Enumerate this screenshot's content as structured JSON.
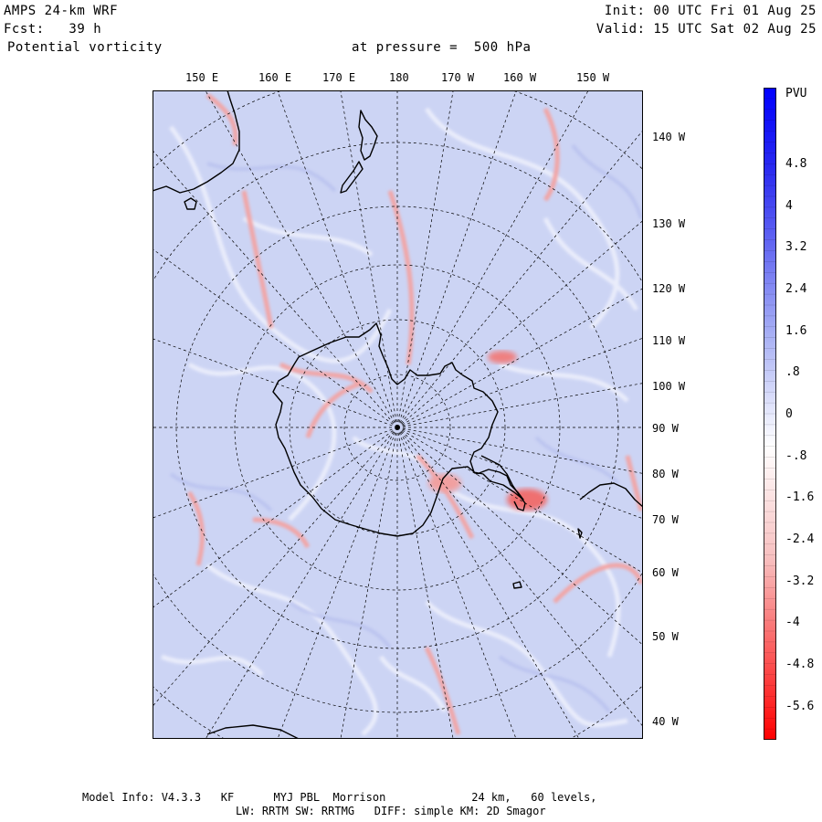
{
  "header": {
    "model_title": "AMPS 24-km WRF",
    "fcst": "Fcst:   39 h",
    "field": "Potential vorticity",
    "pressure": "at pressure =  500 hPa",
    "init": "Init: 00 UTC Fri 01 Aug 25",
    "valid": "Valid: 15 UTC Sat 02 Aug 25"
  },
  "map": {
    "top_longitudes": [
      "150 E",
      "160 E",
      "170 E",
      "180",
      "170 W",
      "160 W",
      "150 W"
    ],
    "right_longitudes": [
      "140 W",
      "130 W",
      "120 W",
      "110 W",
      "100 W",
      "90 W",
      "80 W",
      "70 W",
      "60 W",
      "50 W",
      "40 W"
    ],
    "colors": {
      "background": "#ccd4f4",
      "land_outline": "#000000",
      "grid": "#000000",
      "positive_pv": "#f08080"
    }
  },
  "colorbar": {
    "unit": "PVU",
    "tick_labels": [
      "4.8",
      "4",
      "3.2",
      "2.4",
      "1.6",
      ".8",
      "0",
      "-.8",
      "-1.6",
      "-2.4",
      "-3.2",
      "-4",
      "-4.8",
      "-5.6"
    ],
    "colors": {
      "top": "#0000ff",
      "middle": "#ffffff",
      "bottom": "#ff0000"
    }
  },
  "footer": {
    "line1": "Model Info: V4.3.3   KF      MYJ PBL  Morrison             24 km,   60 levels,",
    "line2": "LW: RRTM SW: RRTMG   DIFF: simple KM: 2D Smagor"
  }
}
